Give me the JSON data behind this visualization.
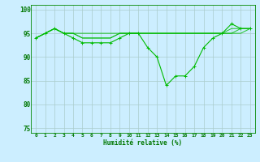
{
  "xlabel": "Humidité relative (%)",
  "bg_color": "#cceeff",
  "grid_color": "#aacccc",
  "line_color": "#00bb00",
  "ylim": [
    74,
    101
  ],
  "xlim": [
    -0.5,
    23.5
  ],
  "yticks": [
    75,
    80,
    85,
    90,
    95,
    100
  ],
  "xticks": [
    0,
    1,
    2,
    3,
    4,
    5,
    6,
    7,
    8,
    9,
    10,
    11,
    12,
    13,
    14,
    15,
    16,
    17,
    18,
    19,
    20,
    21,
    22,
    23
  ],
  "series": [
    [
      94,
      95,
      96,
      95,
      94,
      93,
      93,
      93,
      93,
      94,
      95,
      95,
      92,
      90,
      84,
      86,
      86,
      88,
      92,
      94,
      95,
      97,
      96,
      96
    ],
    [
      94,
      95,
      96,
      95,
      95,
      94,
      94,
      94,
      94,
      95,
      95,
      95,
      95,
      95,
      95,
      95,
      95,
      95,
      95,
      95,
      95,
      95,
      96,
      96
    ],
    [
      94,
      95,
      96,
      95,
      95,
      95,
      95,
      95,
      95,
      95,
      95,
      95,
      95,
      95,
      95,
      95,
      95,
      95,
      95,
      95,
      95,
      95,
      95,
      96
    ],
    [
      94,
      95,
      96,
      95,
      95,
      94,
      94,
      94,
      94,
      95,
      95,
      95,
      95,
      95,
      95,
      95,
      95,
      95,
      95,
      95,
      95,
      96,
      96,
      96
    ]
  ]
}
